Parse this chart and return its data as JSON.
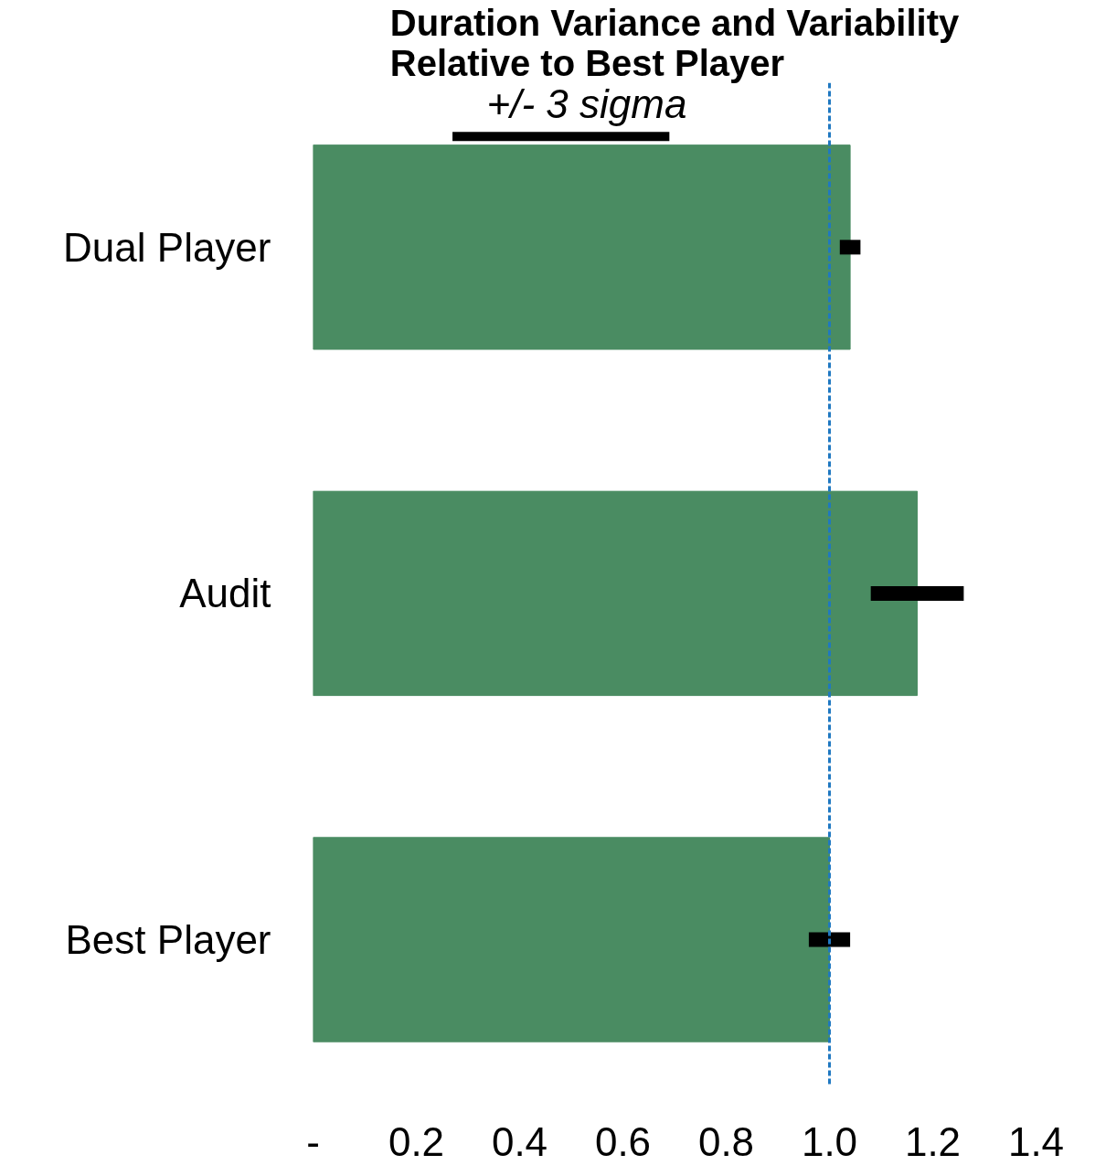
{
  "chart_data": {
    "type": "bar",
    "orientation": "horizontal",
    "title": "Duration Variance and Variability\nRelative to Best Player",
    "categories": [
      "Dual Player",
      "Audit",
      "Best Player"
    ],
    "values": [
      1.04,
      1.17,
      1.0
    ],
    "color": "#4a8c62",
    "errors": [
      [
        1.02,
        1.06
      ],
      [
        1.08,
        1.26
      ],
      [
        0.96,
        1.04
      ]
    ],
    "xlim": [
      0,
      1.4
    ],
    "xticks": [
      {
        "value": 0,
        "label": "-"
      },
      0.2,
      0.4,
      0.6,
      0.8,
      {
        "value": 1.0,
        "label": "1.0"
      },
      1.2,
      1.4
    ],
    "ref_lines": [
      {
        "axis": "x",
        "value": 1.0,
        "color": "#1f78c1",
        "line_style": "dashed"
      }
    ],
    "annotations": [
      "+/- 3 sigma"
    ],
    "grid": false
  }
}
